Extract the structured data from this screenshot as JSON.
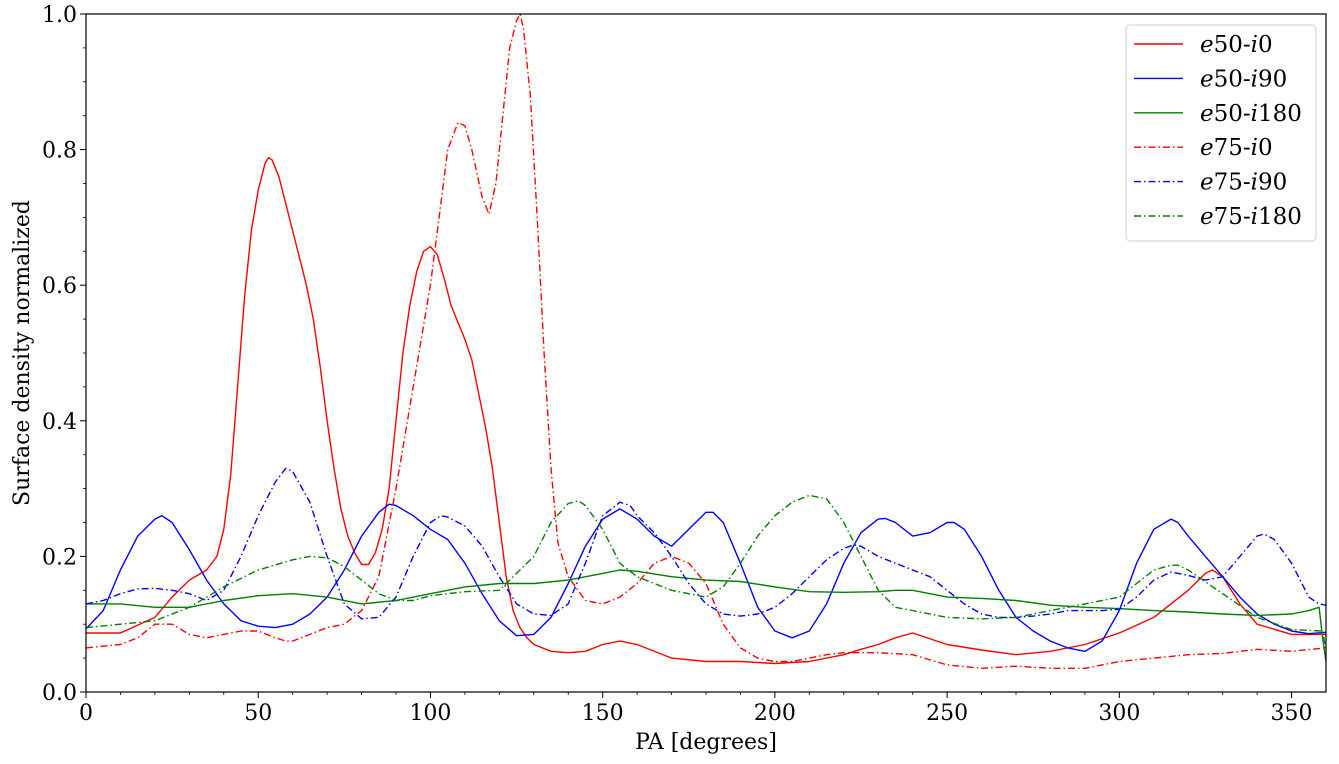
{
  "chart_data": {
    "type": "line",
    "title": "",
    "xlabel": "PA [degrees]",
    "ylabel": "Surface density normalized",
    "xlim": [
      0,
      360
    ],
    "ylim": [
      0,
      1.0
    ],
    "xticks": [
      0,
      50,
      100,
      150,
      200,
      250,
      300,
      350
    ],
    "yticks": [
      0.0,
      0.2,
      0.4,
      0.6,
      0.8,
      1.0
    ],
    "xtick_labels": [
      "0",
      "50",
      "100",
      "150",
      "200",
      "250",
      "300",
      "350"
    ],
    "ytick_labels": [
      "0.0",
      "0.2",
      "0.4",
      "0.6",
      "0.8",
      "1.0"
    ],
    "grid": false,
    "legend_position": "top-right",
    "series": [
      {
        "name": "e50-i0",
        "label_e": "e",
        "label_a": "50-",
        "label_i": "i",
        "label_b": "0",
        "color": "#ff0000",
        "dash": "solid",
        "x": [
          0,
          10,
          20,
          25,
          30,
          35,
          38,
          40,
          42,
          44,
          46,
          48,
          50,
          52,
          53,
          54,
          56,
          58,
          60,
          62,
          64,
          66,
          68,
          70,
          72,
          74,
          76,
          78,
          80,
          82,
          84,
          86,
          88,
          90,
          92,
          94,
          96,
          98,
          100,
          102,
          104,
          106,
          108,
          110,
          112,
          114,
          116,
          118,
          120,
          122,
          124,
          126,
          128,
          130,
          135,
          140,
          145,
          150,
          155,
          160,
          170,
          180,
          190,
          200,
          210,
          220,
          225,
          230,
          235,
          240,
          250,
          260,
          270,
          280,
          290,
          300,
          310,
          320,
          325,
          327,
          330,
          335,
          340,
          350,
          360
        ],
        "y": [
          0.087,
          0.087,
          0.11,
          0.14,
          0.165,
          0.18,
          0.2,
          0.24,
          0.32,
          0.45,
          0.58,
          0.68,
          0.74,
          0.78,
          0.788,
          0.785,
          0.76,
          0.72,
          0.68,
          0.64,
          0.6,
          0.55,
          0.48,
          0.4,
          0.33,
          0.27,
          0.23,
          0.205,
          0.188,
          0.188,
          0.205,
          0.24,
          0.3,
          0.4,
          0.5,
          0.57,
          0.62,
          0.65,
          0.657,
          0.645,
          0.61,
          0.57,
          0.545,
          0.52,
          0.49,
          0.44,
          0.39,
          0.33,
          0.25,
          0.17,
          0.12,
          0.095,
          0.08,
          0.07,
          0.06,
          0.058,
          0.06,
          0.07,
          0.075,
          0.07,
          0.05,
          0.045,
          0.045,
          0.042,
          0.045,
          0.055,
          0.063,
          0.07,
          0.08,
          0.087,
          0.07,
          0.062,
          0.055,
          0.06,
          0.07,
          0.087,
          0.11,
          0.15,
          0.175,
          0.18,
          0.17,
          0.13,
          0.1,
          0.085,
          0.085
        ]
      },
      {
        "name": "e50-i90",
        "label_e": "e",
        "label_a": "50-",
        "label_i": "i",
        "label_b": "90",
        "color": "#0000ff",
        "dash": "solid",
        "x": [
          0,
          5,
          10,
          15,
          20,
          22,
          25,
          30,
          35,
          40,
          45,
          50,
          55,
          60,
          65,
          70,
          75,
          80,
          85,
          88,
          90,
          95,
          100,
          105,
          110,
          115,
          120,
          125,
          130,
          135,
          140,
          145,
          150,
          155,
          160,
          165,
          170,
          175,
          180,
          182,
          185,
          190,
          195,
          200,
          205,
          210,
          215,
          220,
          225,
          230,
          232,
          235,
          240,
          245,
          250,
          252,
          255,
          260,
          265,
          270,
          275,
          280,
          285,
          290,
          295,
          300,
          305,
          310,
          315,
          317,
          320,
          325,
          330,
          335,
          340,
          345,
          350,
          355,
          360
        ],
        "y": [
          0.093,
          0.12,
          0.18,
          0.23,
          0.255,
          0.26,
          0.25,
          0.21,
          0.165,
          0.13,
          0.105,
          0.097,
          0.095,
          0.1,
          0.115,
          0.14,
          0.18,
          0.23,
          0.265,
          0.277,
          0.275,
          0.26,
          0.24,
          0.225,
          0.19,
          0.145,
          0.105,
          0.083,
          0.085,
          0.11,
          0.16,
          0.215,
          0.255,
          0.27,
          0.255,
          0.23,
          0.215,
          0.24,
          0.265,
          0.265,
          0.25,
          0.19,
          0.125,
          0.09,
          0.08,
          0.09,
          0.13,
          0.19,
          0.235,
          0.255,
          0.256,
          0.25,
          0.23,
          0.235,
          0.25,
          0.25,
          0.24,
          0.2,
          0.15,
          0.11,
          0.09,
          0.075,
          0.065,
          0.06,
          0.075,
          0.12,
          0.19,
          0.24,
          0.255,
          0.25,
          0.23,
          0.2,
          0.17,
          0.14,
          0.115,
          0.1,
          0.09,
          0.086,
          0.088
        ]
      },
      {
        "name": "e50-i180",
        "label_e": "e",
        "label_a": "50-",
        "label_i": "i",
        "label_b": "180",
        "color": "#008000",
        "dash": "solid",
        "x": [
          0,
          10,
          20,
          30,
          40,
          50,
          60,
          70,
          80,
          90,
          100,
          110,
          120,
          130,
          140,
          150,
          155,
          160,
          170,
          180,
          190,
          200,
          210,
          220,
          230,
          235,
          240,
          250,
          260,
          270,
          280,
          290,
          300,
          310,
          320,
          330,
          340,
          350,
          355,
          358,
          359,
          360
        ],
        "y": [
          0.13,
          0.13,
          0.125,
          0.125,
          0.135,
          0.142,
          0.145,
          0.14,
          0.13,
          0.135,
          0.145,
          0.155,
          0.16,
          0.16,
          0.165,
          0.175,
          0.18,
          0.178,
          0.17,
          0.165,
          0.163,
          0.155,
          0.148,
          0.147,
          0.148,
          0.15,
          0.15,
          0.14,
          0.138,
          0.135,
          0.128,
          0.125,
          0.123,
          0.12,
          0.118,
          0.115,
          0.113,
          0.115,
          0.12,
          0.125,
          0.08,
          0.045
        ]
      },
      {
        "name": "e75-i0",
        "label_e": "e",
        "label_a": "75-",
        "label_i": "i",
        "label_b": "0",
        "color": "#ff0000",
        "dash": "dashdot",
        "x": [
          0,
          10,
          15,
          20,
          25,
          30,
          35,
          40,
          45,
          50,
          55,
          58,
          60,
          65,
          70,
          75,
          80,
          85,
          90,
          95,
          100,
          103,
          105,
          108,
          110,
          112,
          115,
          117,
          119,
          121,
          123,
          125,
          126,
          127,
          129,
          131,
          133,
          135,
          137,
          140,
          145,
          150,
          155,
          160,
          165,
          170,
          175,
          180,
          185,
          190,
          195,
          200,
          205,
          210,
          215,
          220,
          230,
          240,
          250,
          260,
          270,
          280,
          290,
          300,
          310,
          320,
          330,
          340,
          350,
          360
        ],
        "y": [
          0.065,
          0.07,
          0.08,
          0.1,
          0.1,
          0.085,
          0.08,
          0.085,
          0.09,
          0.09,
          0.08,
          0.075,
          0.075,
          0.085,
          0.095,
          0.1,
          0.12,
          0.17,
          0.3,
          0.45,
          0.6,
          0.72,
          0.8,
          0.84,
          0.835,
          0.8,
          0.73,
          0.705,
          0.75,
          0.85,
          0.95,
          0.99,
          1.0,
          0.98,
          0.88,
          0.7,
          0.5,
          0.33,
          0.22,
          0.17,
          0.135,
          0.13,
          0.14,
          0.16,
          0.19,
          0.2,
          0.19,
          0.16,
          0.1,
          0.065,
          0.05,
          0.045,
          0.045,
          0.05,
          0.055,
          0.058,
          0.058,
          0.055,
          0.04,
          0.035,
          0.038,
          0.035,
          0.035,
          0.045,
          0.05,
          0.055,
          0.057,
          0.063,
          0.06,
          0.065
        ]
      },
      {
        "name": "e75-i90",
        "label_e": "e",
        "label_a": "75-",
        "label_i": "i",
        "label_b": "90",
        "color": "#0000ff",
        "dash": "dashdot",
        "x": [
          0,
          5,
          10,
          15,
          20,
          25,
          30,
          35,
          40,
          45,
          50,
          55,
          58,
          60,
          65,
          70,
          75,
          80,
          85,
          90,
          95,
          100,
          103,
          105,
          110,
          115,
          120,
          125,
          130,
          135,
          140,
          145,
          150,
          155,
          158,
          160,
          165,
          170,
          175,
          180,
          185,
          190,
          195,
          200,
          205,
          210,
          215,
          220,
          223,
          225,
          230,
          235,
          240,
          245,
          250,
          255,
          260,
          265,
          270,
          275,
          280,
          285,
          290,
          295,
          300,
          305,
          310,
          315,
          320,
          325,
          330,
          335,
          340,
          342,
          345,
          350,
          355,
          358,
          360
        ],
        "y": [
          0.13,
          0.135,
          0.145,
          0.152,
          0.153,
          0.15,
          0.145,
          0.135,
          0.15,
          0.2,
          0.26,
          0.31,
          0.33,
          0.325,
          0.28,
          0.2,
          0.13,
          0.108,
          0.11,
          0.14,
          0.2,
          0.25,
          0.26,
          0.258,
          0.245,
          0.215,
          0.17,
          0.13,
          0.115,
          0.113,
          0.13,
          0.19,
          0.26,
          0.28,
          0.275,
          0.26,
          0.235,
          0.2,
          0.16,
          0.13,
          0.115,
          0.112,
          0.115,
          0.125,
          0.145,
          0.17,
          0.195,
          0.212,
          0.217,
          0.215,
          0.2,
          0.19,
          0.18,
          0.17,
          0.15,
          0.13,
          0.115,
          0.11,
          0.11,
          0.112,
          0.115,
          0.12,
          0.12,
          0.12,
          0.122,
          0.14,
          0.165,
          0.177,
          0.172,
          0.165,
          0.17,
          0.2,
          0.23,
          0.233,
          0.225,
          0.19,
          0.14,
          0.13,
          0.128
        ]
      },
      {
        "name": "e75-i180",
        "label_e": "e",
        "label_a": "75-",
        "label_i": "i",
        "label_b": "180",
        "color": "#008000",
        "dash": "dashdot",
        "x": [
          0,
          10,
          20,
          30,
          40,
          50,
          60,
          65,
          70,
          75,
          80,
          85,
          90,
          95,
          100,
          110,
          120,
          130,
          135,
          140,
          143,
          145,
          150,
          155,
          160,
          170,
          180,
          185,
          190,
          195,
          200,
          205,
          210,
          215,
          220,
          225,
          230,
          235,
          240,
          250,
          260,
          270,
          280,
          290,
          300,
          305,
          310,
          315,
          317,
          320,
          330,
          340,
          350,
          359,
          360
        ],
        "y": [
          0.095,
          0.1,
          0.105,
          0.125,
          0.155,
          0.18,
          0.195,
          0.2,
          0.198,
          0.185,
          0.165,
          0.145,
          0.135,
          0.135,
          0.142,
          0.148,
          0.15,
          0.2,
          0.25,
          0.278,
          0.282,
          0.275,
          0.24,
          0.19,
          0.17,
          0.15,
          0.14,
          0.155,
          0.19,
          0.23,
          0.26,
          0.28,
          0.29,
          0.285,
          0.25,
          0.2,
          0.15,
          0.125,
          0.12,
          0.11,
          0.108,
          0.11,
          0.12,
          0.13,
          0.14,
          0.16,
          0.18,
          0.187,
          0.187,
          0.18,
          0.145,
          0.11,
          0.092,
          0.09,
          0.06
        ]
      }
    ]
  }
}
